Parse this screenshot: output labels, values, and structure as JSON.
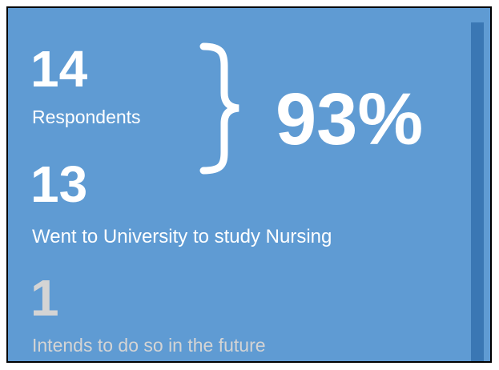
{
  "stats": [
    {
      "value": "14",
      "label": "Respondents"
    },
    {
      "value": "13",
      "label": "Went to University to study Nursing"
    },
    {
      "value": "1",
      "label": "Intends to do so in the future"
    }
  ],
  "percentage": "93%"
}
